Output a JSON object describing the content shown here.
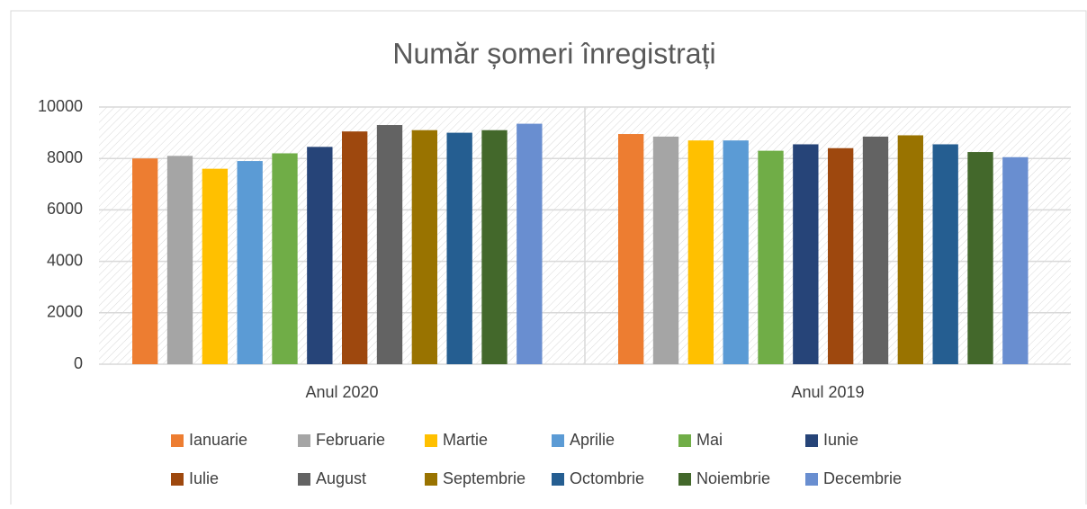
{
  "chart_data": {
    "type": "bar",
    "title": "Număr șomeri înregistrați",
    "categories": [
      "Anul 2020",
      "Anul 2019"
    ],
    "series": [
      {
        "name": "Ianuarie",
        "color": "#ED7D31",
        "values": [
          8000,
          8950
        ]
      },
      {
        "name": "Februarie",
        "color": "#A5A5A5",
        "values": [
          8100,
          8850
        ]
      },
      {
        "name": "Martie",
        "color": "#FFC000",
        "values": [
          7600,
          8700
        ]
      },
      {
        "name": "Aprilie",
        "color": "#5B9BD5",
        "values": [
          7900,
          8700
        ]
      },
      {
        "name": "Mai",
        "color": "#70AD47",
        "values": [
          8200,
          8300
        ]
      },
      {
        "name": "Iunie",
        "color": "#264478",
        "values": [
          8450,
          8550
        ]
      },
      {
        "name": "Iulie",
        "color": "#9E480E",
        "values": [
          9050,
          8400
        ]
      },
      {
        "name": "August",
        "color": "#636363",
        "values": [
          9300,
          8850
        ]
      },
      {
        "name": "Septembrie",
        "color": "#997300",
        "values": [
          9100,
          8900
        ]
      },
      {
        "name": "Octombrie",
        "color": "#255E91",
        "values": [
          9000,
          8550
        ]
      },
      {
        "name": "Noiembrie",
        "color": "#43682B",
        "values": [
          9100,
          8250
        ]
      },
      {
        "name": "Decembrie",
        "color": "#698ED0",
        "values": [
          9350,
          8050
        ]
      }
    ],
    "ylim": [
      0,
      10000
    ],
    "yticks": [
      0,
      2000,
      4000,
      6000,
      8000,
      10000
    ],
    "grid": true,
    "legend": "bottom"
  }
}
